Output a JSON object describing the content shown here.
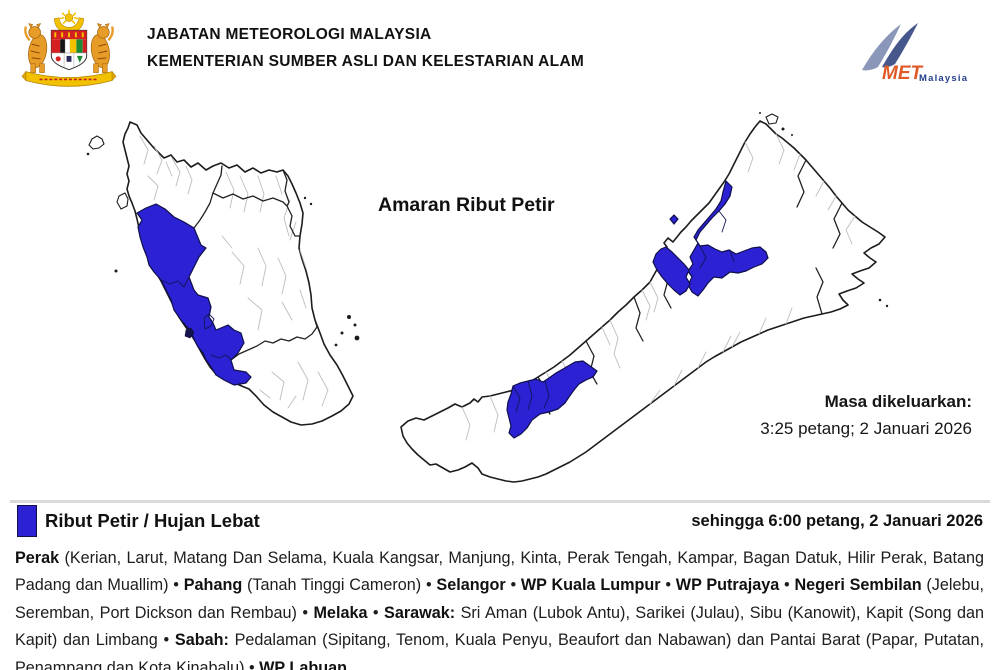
{
  "header": {
    "line1": "JABATAN METEOROLOGI MALAYSIA",
    "line2": "KEMENTERIAN SUMBER ASLI DAN KELESTARIAN ALAM",
    "crest_icon": "malaysia-coat-of-arms",
    "met_logo": {
      "icon": "met-swoosh-m",
      "met": "MET",
      "malaysia": "Malaysia",
      "met_color": "#E05A28",
      "malaysia_color": "#24418E"
    }
  },
  "map": {
    "title": "Amaran Ribut Petir",
    "issued_label": "Masa dikeluarkan:",
    "issued_time": "3:25 petang; 2 Januari 2026",
    "land_color": "#FFFFFF",
    "border_color": "#1C1C1C",
    "district_line_color": "#BDBDBD"
  },
  "legend": {
    "swatch_color": "#2C21D3",
    "swatch_icon": "blue-warning-swatch",
    "label": "Ribut Petir / Hujan Lebat",
    "valid_until": "sehingga 6:00 petang, 2 Januari 2026"
  },
  "affected_areas": {
    "segments": [
      {
        "text": "Perak",
        "bold": true
      },
      {
        "text": " (Kerian, Larut, Matang Dan Selama, Kuala Kangsar, Manjung, Kinta, Perak Tengah, Kampar, Bagan Datuk, Hilir Perak, Batang Padang dan Muallim) • ",
        "bold": false
      },
      {
        "text": "Pahang",
        "bold": true
      },
      {
        "text": " (Tanah Tinggi Cameron) • ",
        "bold": false
      },
      {
        "text": "Selangor",
        "bold": true
      },
      {
        "text": " • ",
        "bold": false
      },
      {
        "text": "WP Kuala Lumpur",
        "bold": true
      },
      {
        "text": " • ",
        "bold": false
      },
      {
        "text": "WP Putrajaya",
        "bold": true
      },
      {
        "text": " • ",
        "bold": false
      },
      {
        "text": "Negeri Sembilan",
        "bold": true
      },
      {
        "text": " (Jelebu, Seremban, Port Dickson dan Rembau) • ",
        "bold": false
      },
      {
        "text": "Melaka",
        "bold": true
      },
      {
        "text": " • ",
        "bold": false
      },
      {
        "text": "Sarawak:",
        "bold": true
      },
      {
        "text": " Sri Aman (Lubok Antu), Sarikei (Julau), Sibu (Kanowit), Kapit (Song dan Kapit) dan Limbang • ",
        "bold": false
      },
      {
        "text": "Sabah:",
        "bold": true
      },
      {
        "text": " Pedalaman (Sipitang, Tenom, Kuala Penyu, Beaufort dan Nabawan) dan Pantai Barat (Papar, Putatan, Penampang dan Kota Kinabalu) • ",
        "bold": false
      },
      {
        "text": "WP Labuan",
        "bold": true
      }
    ]
  }
}
